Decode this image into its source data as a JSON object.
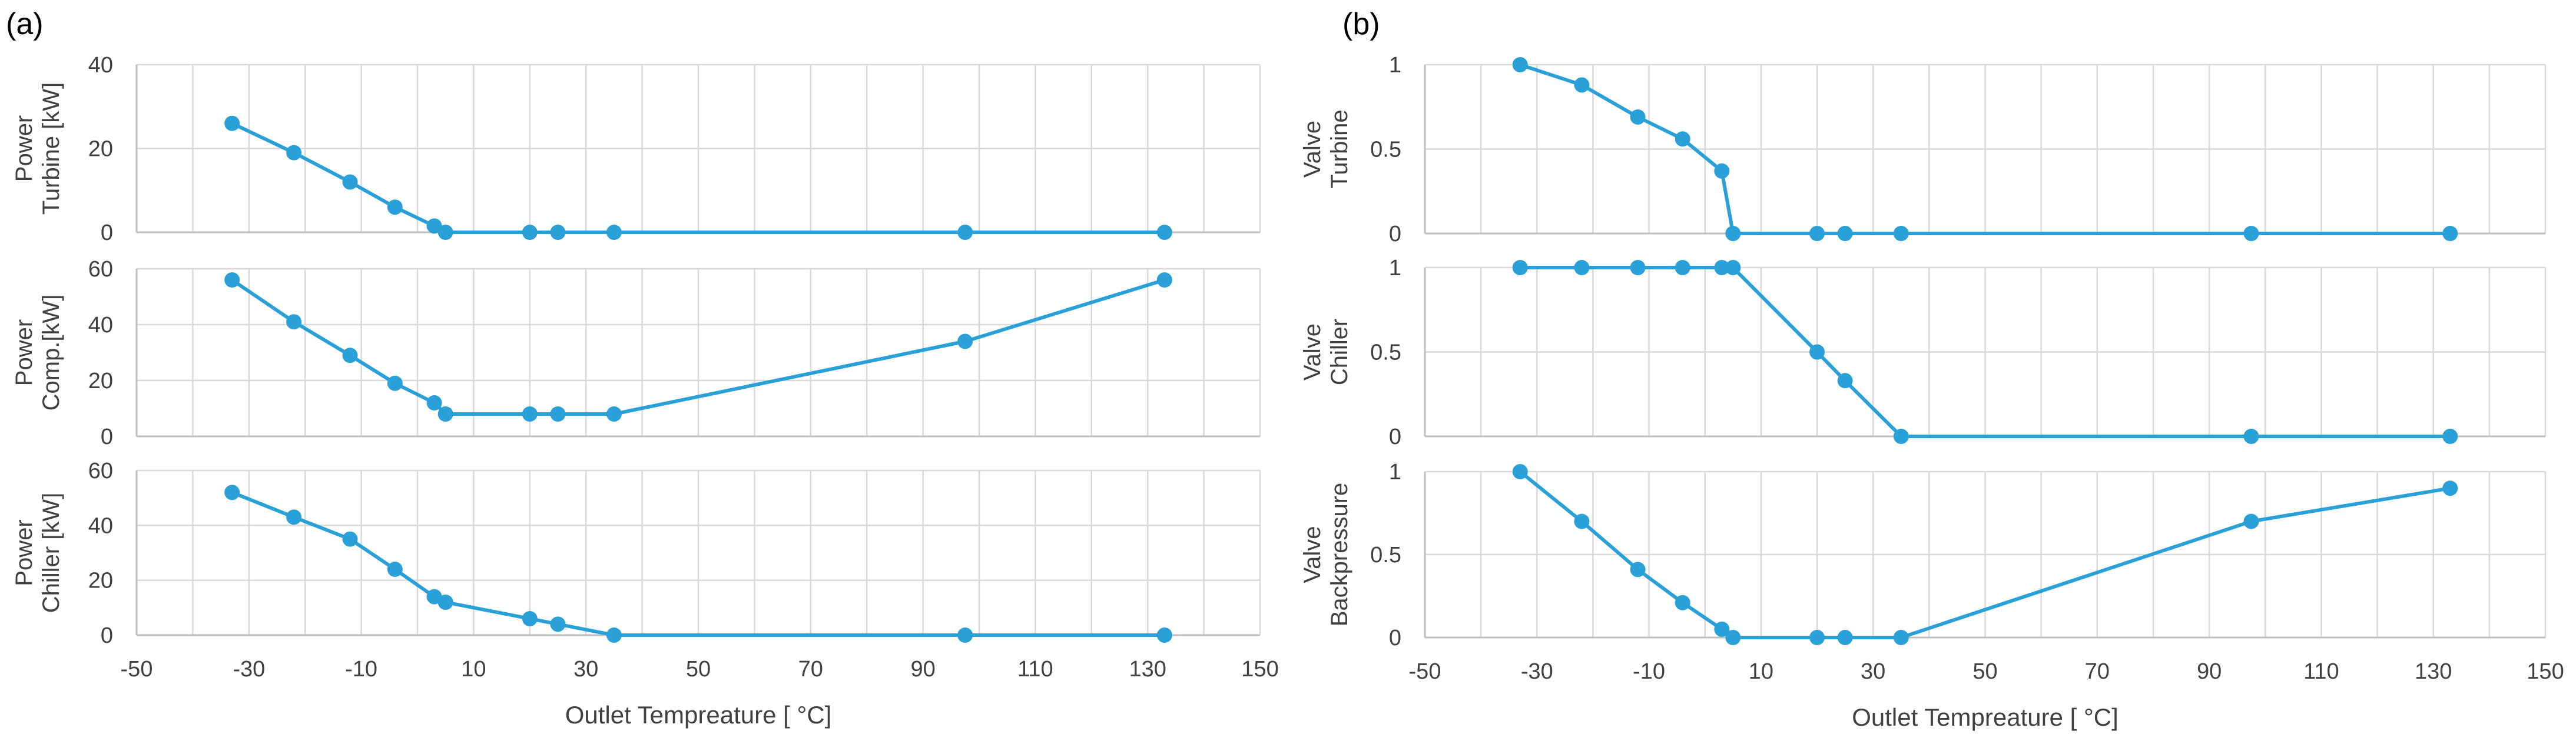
{
  "figure": {
    "panel_labels": [
      "(a)",
      "(b)"
    ],
    "series_color": "#2aa0d8",
    "grid_color": "#d9d9d9"
  },
  "chart_data": [
    {
      "id": "a1",
      "type": "line",
      "title": "",
      "ylabel": [
        "Power",
        "Turbine [kW]"
      ],
      "xlim": [
        -50,
        150
      ],
      "ylim": [
        0,
        40
      ],
      "yticks": [
        0,
        20,
        40
      ],
      "x": [
        -33,
        -22,
        -12,
        -4,
        3,
        5,
        20,
        25,
        35,
        97.5,
        133
      ],
      "series": [
        {
          "name": "Power Turbine",
          "values": [
            26,
            19,
            12,
            6,
            1.5,
            0,
            0,
            0,
            0,
            0,
            0
          ]
        }
      ]
    },
    {
      "id": "a2",
      "type": "line",
      "title": "",
      "ylabel": [
        "Power",
        "Comp.[kW]"
      ],
      "xlim": [
        -50,
        150
      ],
      "ylim": [
        0,
        60
      ],
      "yticks": [
        0,
        20,
        40,
        60
      ],
      "x": [
        -33,
        -22,
        -12,
        -4,
        3,
        5,
        20,
        25,
        35,
        97.5,
        133
      ],
      "series": [
        {
          "name": "Power Comp.",
          "values": [
            56,
            41,
            29,
            19,
            12,
            8,
            8,
            8,
            8,
            34,
            56
          ]
        }
      ]
    },
    {
      "id": "a3",
      "type": "line",
      "title": "",
      "ylabel": [
        "Power",
        "Chiller [kW]"
      ],
      "xlim": [
        -50,
        150
      ],
      "ylim": [
        0,
        60
      ],
      "yticks": [
        0,
        20,
        40,
        60
      ],
      "xticks": [
        -50,
        -30,
        -10,
        10,
        30,
        50,
        70,
        90,
        110,
        130,
        150
      ],
      "xlabel": "Outlet Tempreature [ °C]",
      "x": [
        -33,
        -22,
        -12,
        -4,
        3,
        5,
        20,
        25,
        35,
        97.5,
        133
      ],
      "series": [
        {
          "name": "Power Chiller",
          "values": [
            52,
            43,
            35,
            24,
            14,
            12,
            6,
            4,
            0,
            0,
            0
          ]
        }
      ]
    },
    {
      "id": "b1",
      "type": "line",
      "title": "",
      "ylabel": [
        "Valve",
        "Turbine"
      ],
      "xlim": [
        -50,
        150
      ],
      "ylim": [
        0,
        1
      ],
      "yticks": [
        0,
        0.5,
        1
      ],
      "x": [
        -33,
        -22,
        -12,
        -4,
        3,
        5,
        20,
        25,
        35,
        97.5,
        133
      ],
      "series": [
        {
          "name": "Valve Turbine",
          "values": [
            1,
            0.88,
            0.69,
            0.56,
            0.37,
            0,
            0,
            0,
            0,
            0,
            0
          ]
        }
      ]
    },
    {
      "id": "b2",
      "type": "line",
      "title": "",
      "ylabel": [
        "Valve",
        "Chiller"
      ],
      "xlim": [
        -50,
        150
      ],
      "ylim": [
        0,
        1
      ],
      "yticks": [
        0,
        0.5,
        1
      ],
      "x": [
        -33,
        -22,
        -12,
        -4,
        3,
        5,
        20,
        25,
        35,
        97.5,
        133
      ],
      "series": [
        {
          "name": "Valve Chiller",
          "values": [
            1,
            1,
            1,
            1,
            1,
            1,
            0.5,
            0.33,
            0,
            0,
            0
          ]
        }
      ]
    },
    {
      "id": "b3",
      "type": "line",
      "title": "",
      "ylabel": [
        "Valve",
        "Backpressure"
      ],
      "xlim": [
        -50,
        150
      ],
      "ylim": [
        0,
        1
      ],
      "yticks": [
        0,
        0.5,
        1
      ],
      "xticks": [
        -50,
        -30,
        -10,
        10,
        30,
        50,
        70,
        90,
        110,
        130,
        150
      ],
      "xlabel": "Outlet Tempreature [ °C]",
      "x": [
        -33,
        -22,
        -12,
        -4,
        3,
        5,
        20,
        25,
        35,
        97.5,
        133
      ],
      "series": [
        {
          "name": "Valve Backpressure",
          "values": [
            1,
            0.7,
            0.41,
            0.21,
            0.05,
            0,
            0,
            0,
            0,
            0.7,
            0.9
          ]
        }
      ]
    }
  ]
}
